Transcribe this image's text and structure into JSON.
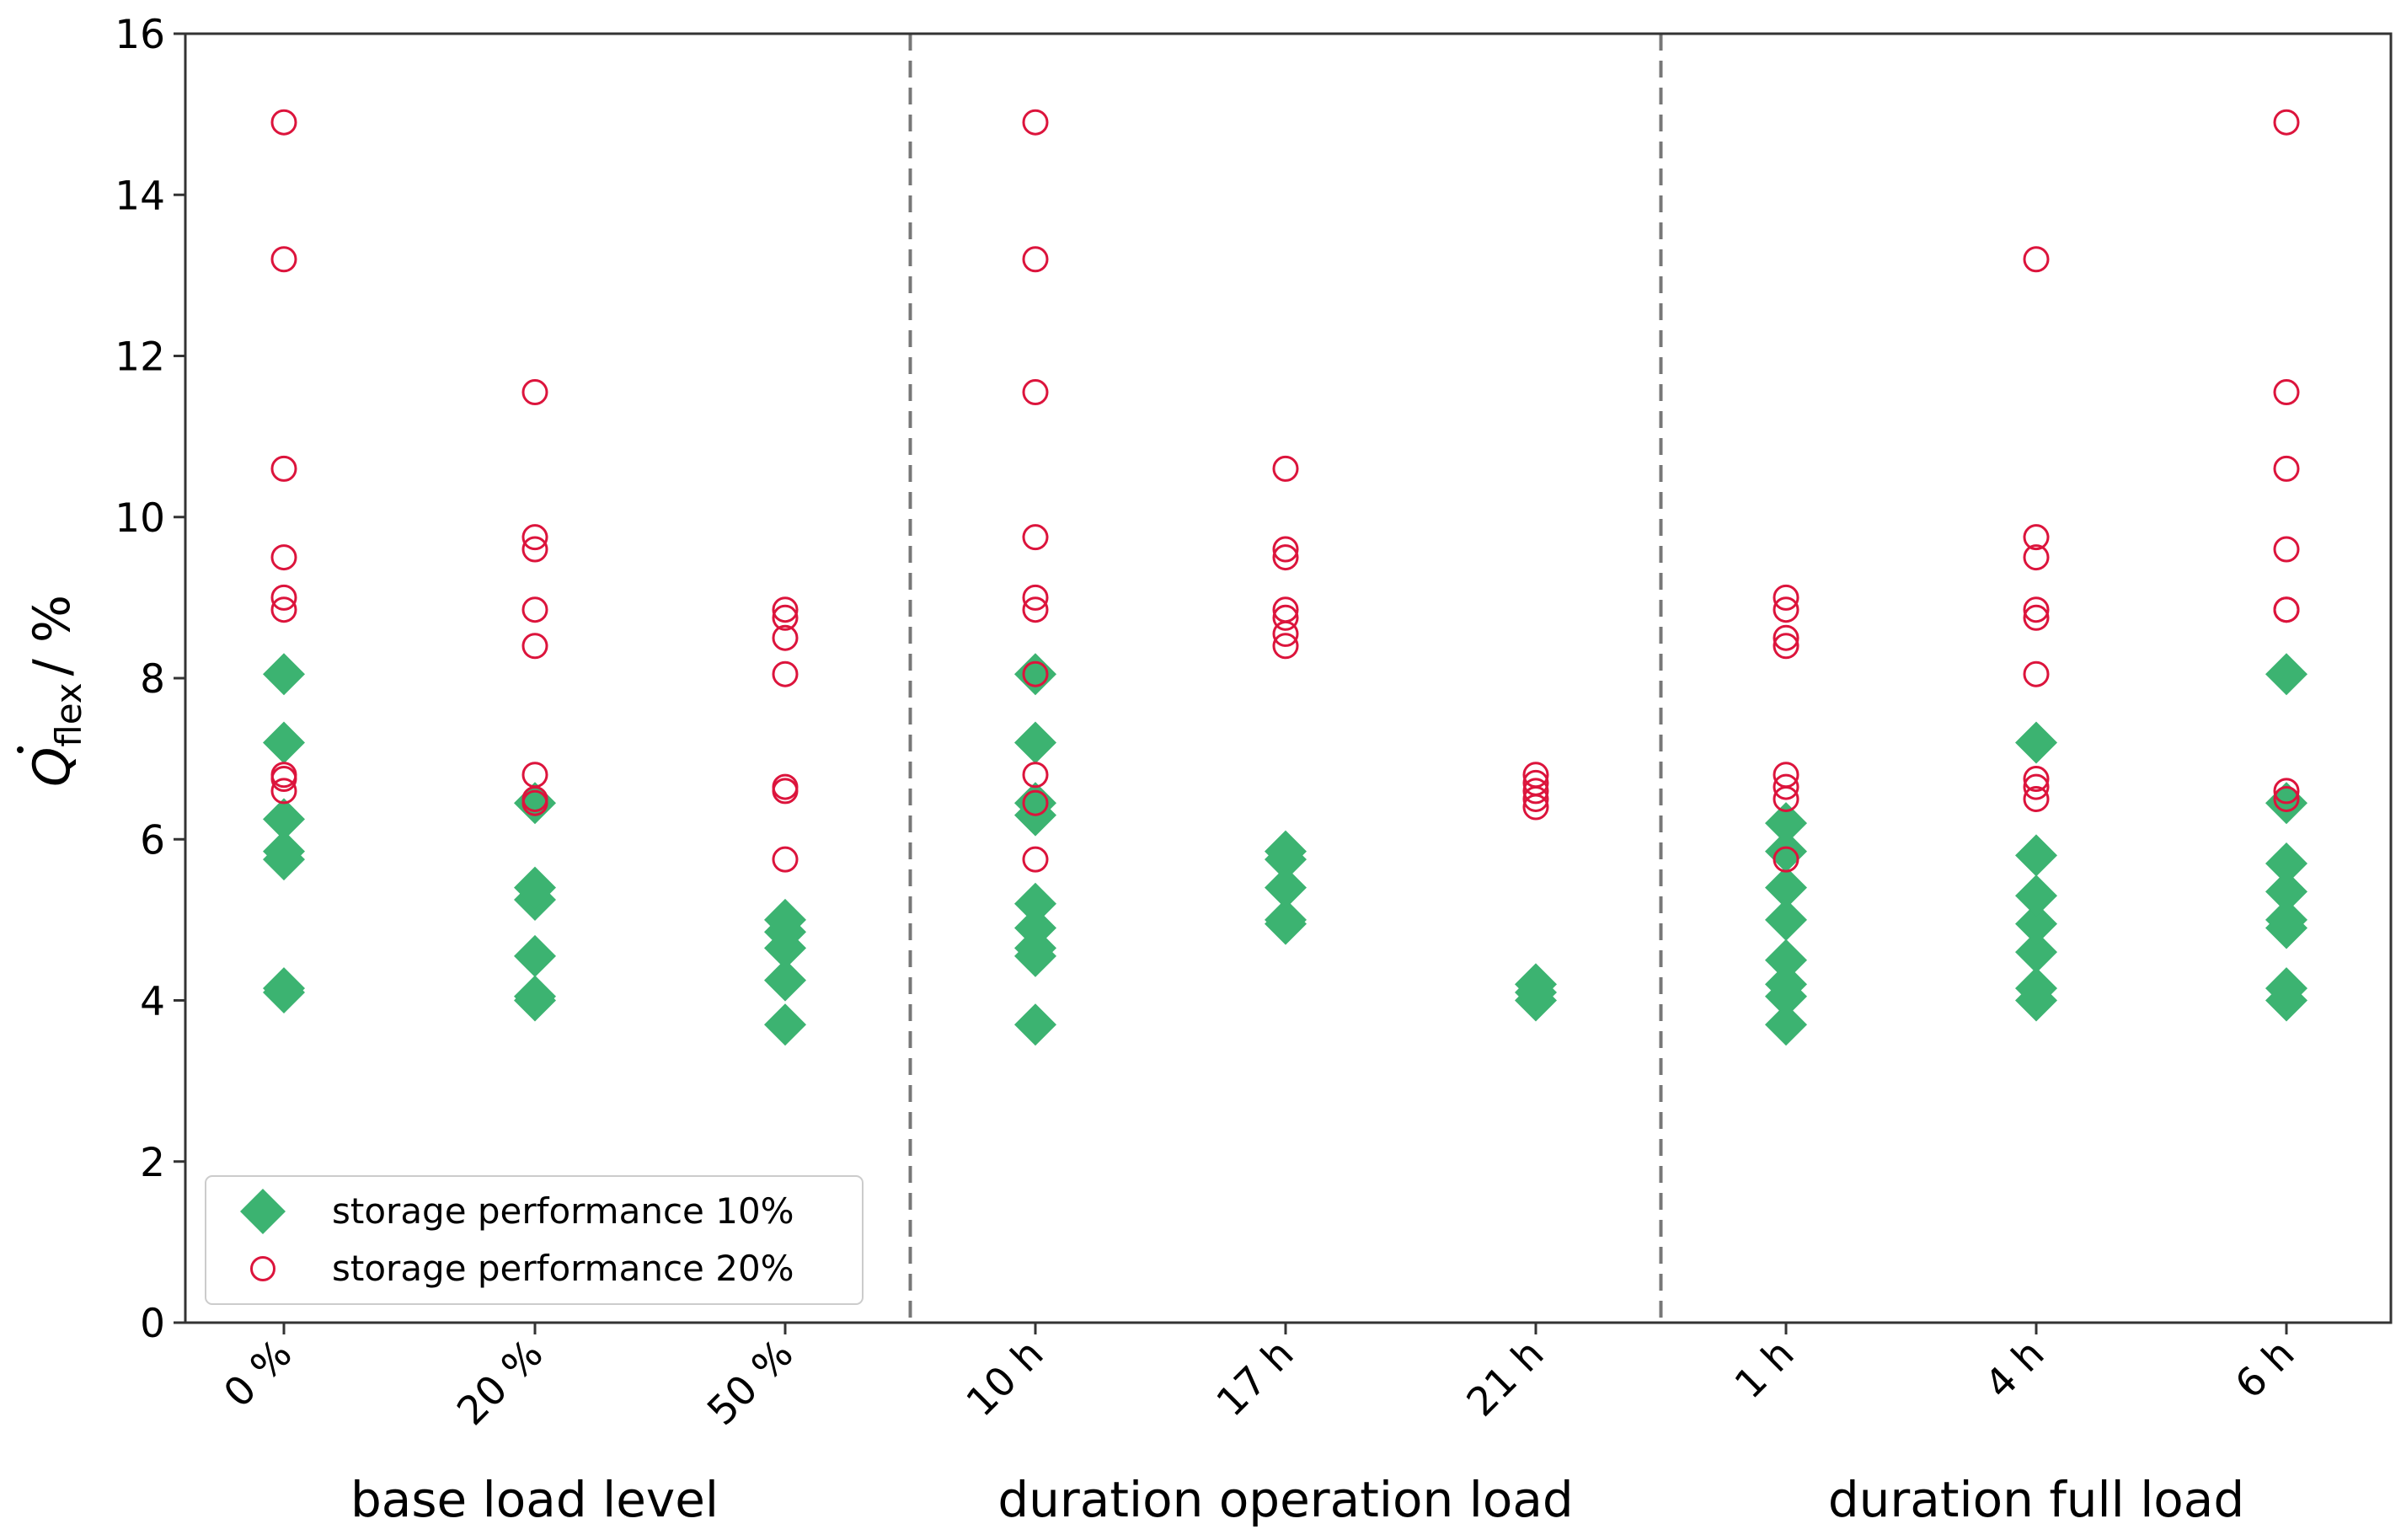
{
  "chart_data": {
    "type": "scatter",
    "title": "",
    "xlabel": "",
    "ylabel_main": "Q",
    "ylabel_sub": "flex",
    "ylabel_suffix": "/ %",
    "ylim": [
      0,
      16
    ],
    "yticks": [
      0,
      2,
      4,
      6,
      8,
      10,
      12,
      14,
      16
    ],
    "categories": [
      "0 %",
      "20 %",
      "50 %",
      "10 h",
      "17 h",
      "21 h",
      "1 h",
      "4 h",
      "6 h"
    ],
    "groups": [
      {
        "label": "base load level",
        "categories": [
          0,
          1,
          2
        ]
      },
      {
        "label": "duration operation load",
        "categories": [
          3,
          4,
          5
        ]
      },
      {
        "label": "duration full load",
        "categories": [
          6,
          7,
          8
        ]
      }
    ],
    "legend_position": "lower-left",
    "series": [
      {
        "name": "storage performance 10%",
        "marker": "diamond-filled",
        "color": "#3CB371",
        "values": [
          [
            4.1,
            4.15,
            5.75,
            5.85,
            6.25,
            7.2,
            8.05
          ],
          [
            4.0,
            4.05,
            4.55,
            5.25,
            5.4,
            6.45
          ],
          [
            3.7,
            4.25,
            4.65,
            4.85,
            5.0
          ],
          [
            3.7,
            4.55,
            4.65,
            4.9,
            5.2,
            6.3,
            6.45,
            7.2,
            8.05
          ],
          [
            4.95,
            5.0,
            5.4,
            5.75,
            5.85
          ],
          [
            4.0,
            4.1,
            4.2
          ],
          [
            3.7,
            4.05,
            4.2,
            4.5,
            5.0,
            5.4,
            5.85,
            6.2
          ],
          [
            4.0,
            4.15,
            4.6,
            4.95,
            5.3,
            5.8,
            7.2
          ],
          [
            4.0,
            4.15,
            4.9,
            5.0,
            5.35,
            5.7,
            6.45,
            8.05
          ]
        ]
      },
      {
        "name": "storage performance 20%",
        "marker": "circle-open",
        "color": "#DC143C",
        "values": [
          [
            6.6,
            6.75,
            6.8,
            8.85,
            9.0,
            9.5,
            10.6,
            13.2,
            14.9
          ],
          [
            6.45,
            6.5,
            6.8,
            8.4,
            8.85,
            9.6,
            9.75,
            11.55
          ],
          [
            5.75,
            6.6,
            6.65,
            8.05,
            8.5,
            8.75,
            8.85
          ],
          [
            5.75,
            6.45,
            6.8,
            8.05,
            8.85,
            9.0,
            9.75,
            11.55,
            13.2,
            14.9
          ],
          [
            8.4,
            8.55,
            8.75,
            8.85,
            9.5,
            9.6,
            10.6
          ],
          [
            6.4,
            6.5,
            6.6,
            6.7,
            6.8
          ],
          [
            5.75,
            6.5,
            6.65,
            6.8,
            8.4,
            8.5,
            8.85,
            9.0
          ],
          [
            6.5,
            6.65,
            6.75,
            8.05,
            8.75,
            8.85,
            9.5,
            9.75,
            13.2
          ],
          [
            6.5,
            6.6,
            8.85,
            8.85,
            9.6,
            10.6,
            11.55,
            14.9
          ]
        ]
      }
    ]
  }
}
